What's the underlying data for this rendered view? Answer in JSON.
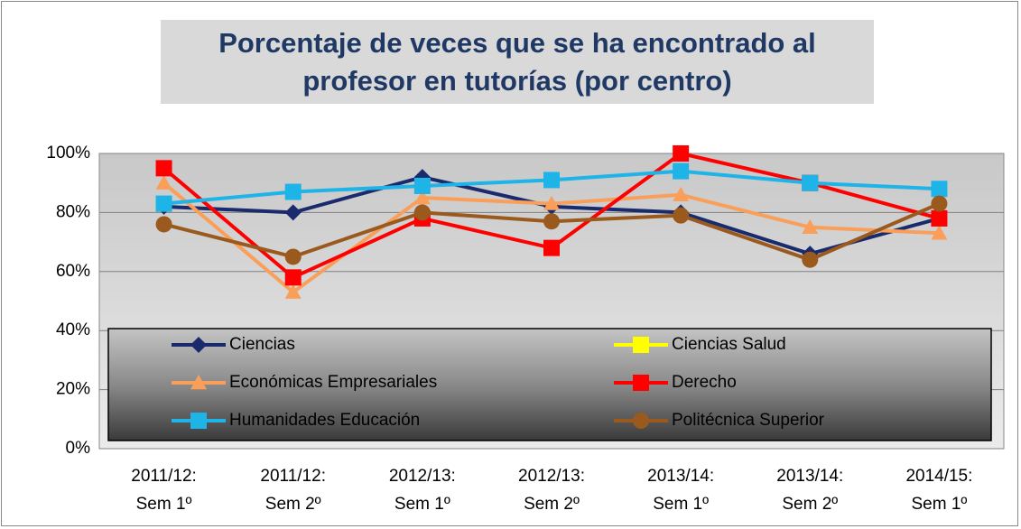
{
  "chart_data": {
    "type": "line",
    "title": "Porcentaje de veces que se ha encontrado al profesor en tutorías (por centro)",
    "categories": [
      "2011/12: Sem 1º",
      "2011/12: Sem 2º",
      "2012/13: Sem 1º",
      "2012/13: Sem 2º",
      "2013/14: Sem 1º",
      "2013/14: Sem 2º",
      "2014/15: Sem 1º"
    ],
    "ylim": [
      0,
      100
    ],
    "yticks": [
      {
        "value": 0,
        "label": "0%"
      },
      {
        "value": 20,
        "label": "20%"
      },
      {
        "value": 40,
        "label": "40%"
      },
      {
        "value": 60,
        "label": "60%"
      },
      {
        "value": 80,
        "label": "80%"
      },
      {
        "value": 100,
        "label": "100%"
      }
    ],
    "grid": true,
    "legend": "inside-bottom",
    "series": [
      {
        "name": "Ciencias",
        "color": "#1a2b6d",
        "marker": "diamond",
        "values": [
          82,
          80,
          92,
          82,
          80,
          66,
          78
        ]
      },
      {
        "name": "Ciencias Salud",
        "color": "#ffff00",
        "marker": "square",
        "values": [
          null,
          null,
          null,
          null,
          null,
          null,
          null
        ]
      },
      {
        "name": "Económicas Empresariales",
        "color": "#fa9f5a",
        "marker": "triangle",
        "values": [
          90,
          53,
          85,
          83,
          86,
          75,
          73
        ]
      },
      {
        "name": "Derecho",
        "color": "#ff0000",
        "marker": "square",
        "values": [
          95,
          58,
          78,
          68,
          100,
          90,
          78
        ]
      },
      {
        "name": "Humanidades Educación",
        "color": "#1eb4e8",
        "marker": "square",
        "values": [
          83,
          87,
          89,
          91,
          94,
          90,
          88
        ]
      },
      {
        "name": "Politécnica Superior",
        "color": "#9a5a1e",
        "marker": "circle",
        "values": [
          76,
          65,
          80,
          77,
          79,
          64,
          83
        ]
      }
    ]
  }
}
